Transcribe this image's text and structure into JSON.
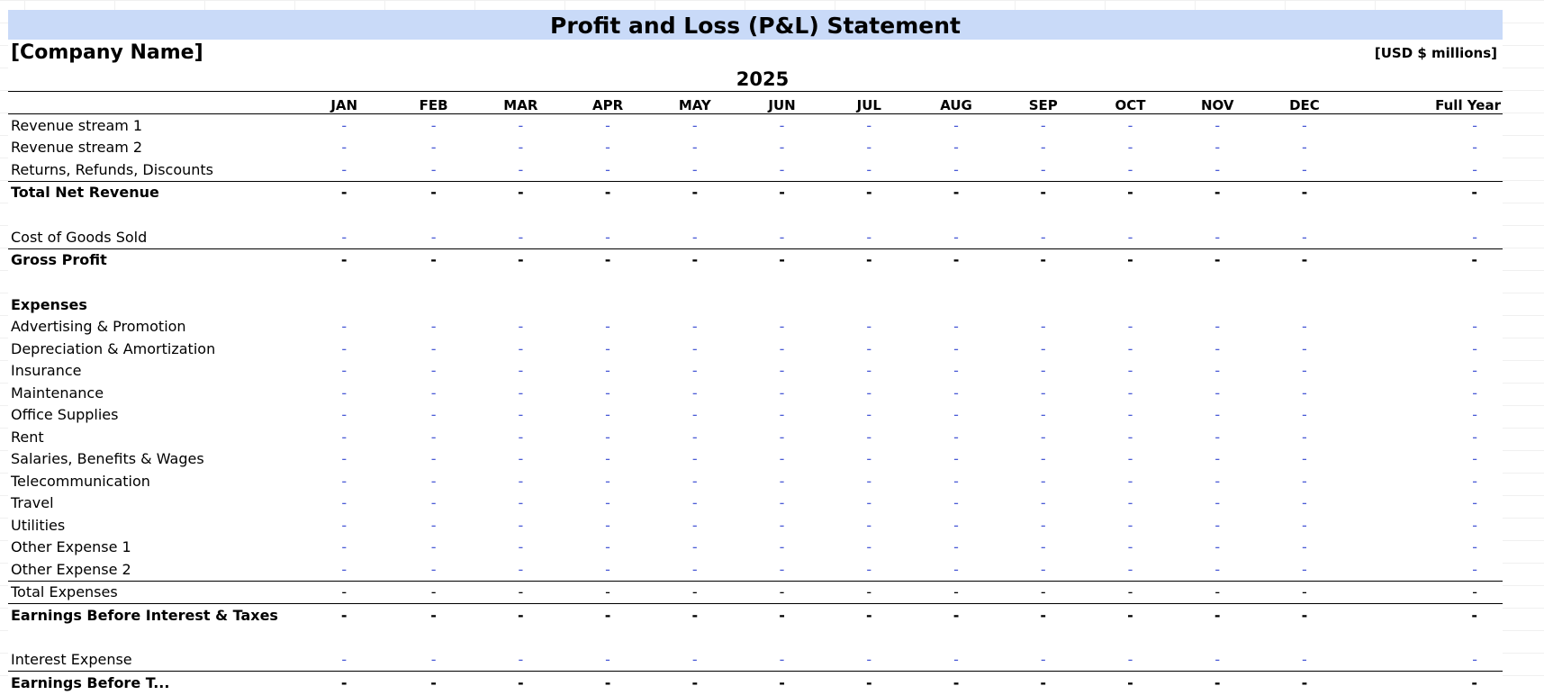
{
  "title": "Profit and Loss (P&L) Statement",
  "company": "[Company Name]",
  "units": "[USD $ millions]",
  "year": "2025",
  "columns": [
    "JAN",
    "FEB",
    "MAR",
    "APR",
    "MAY",
    "JUN",
    "JUL",
    "AUG",
    "SEP",
    "OCT",
    "NOV",
    "DEC",
    "Full Year"
  ],
  "placeholder": "-",
  "rows": {
    "revenue_stream_1": "Revenue stream 1",
    "revenue_stream_2": "Revenue stream 2",
    "returns_refunds": "Returns, Refunds, Discounts",
    "total_net_revenue": "Total Net Revenue",
    "cogs": "Cost of Goods Sold",
    "gross_profit": "Gross Profit",
    "expenses_header": "Expenses",
    "advertising": "Advertising & Promotion",
    "depreciation": "Depreciation & Amortization",
    "insurance": "Insurance",
    "maintenance": "Maintenance",
    "office_supplies": "Office Supplies",
    "rent": "Rent",
    "salaries": "Salaries, Benefits & Wages",
    "telecom": "Telecommunication",
    "travel": "Travel",
    "utilities": "Utilities",
    "other_expense_1": "Other Expense 1",
    "other_expense_2": "Other Expense 2",
    "total_expenses": "Total Expenses",
    "ebit": "Earnings Before Interest & Taxes",
    "interest_expense": "Interest Expense",
    "ebt_partial": "Earnings Before T..."
  }
}
